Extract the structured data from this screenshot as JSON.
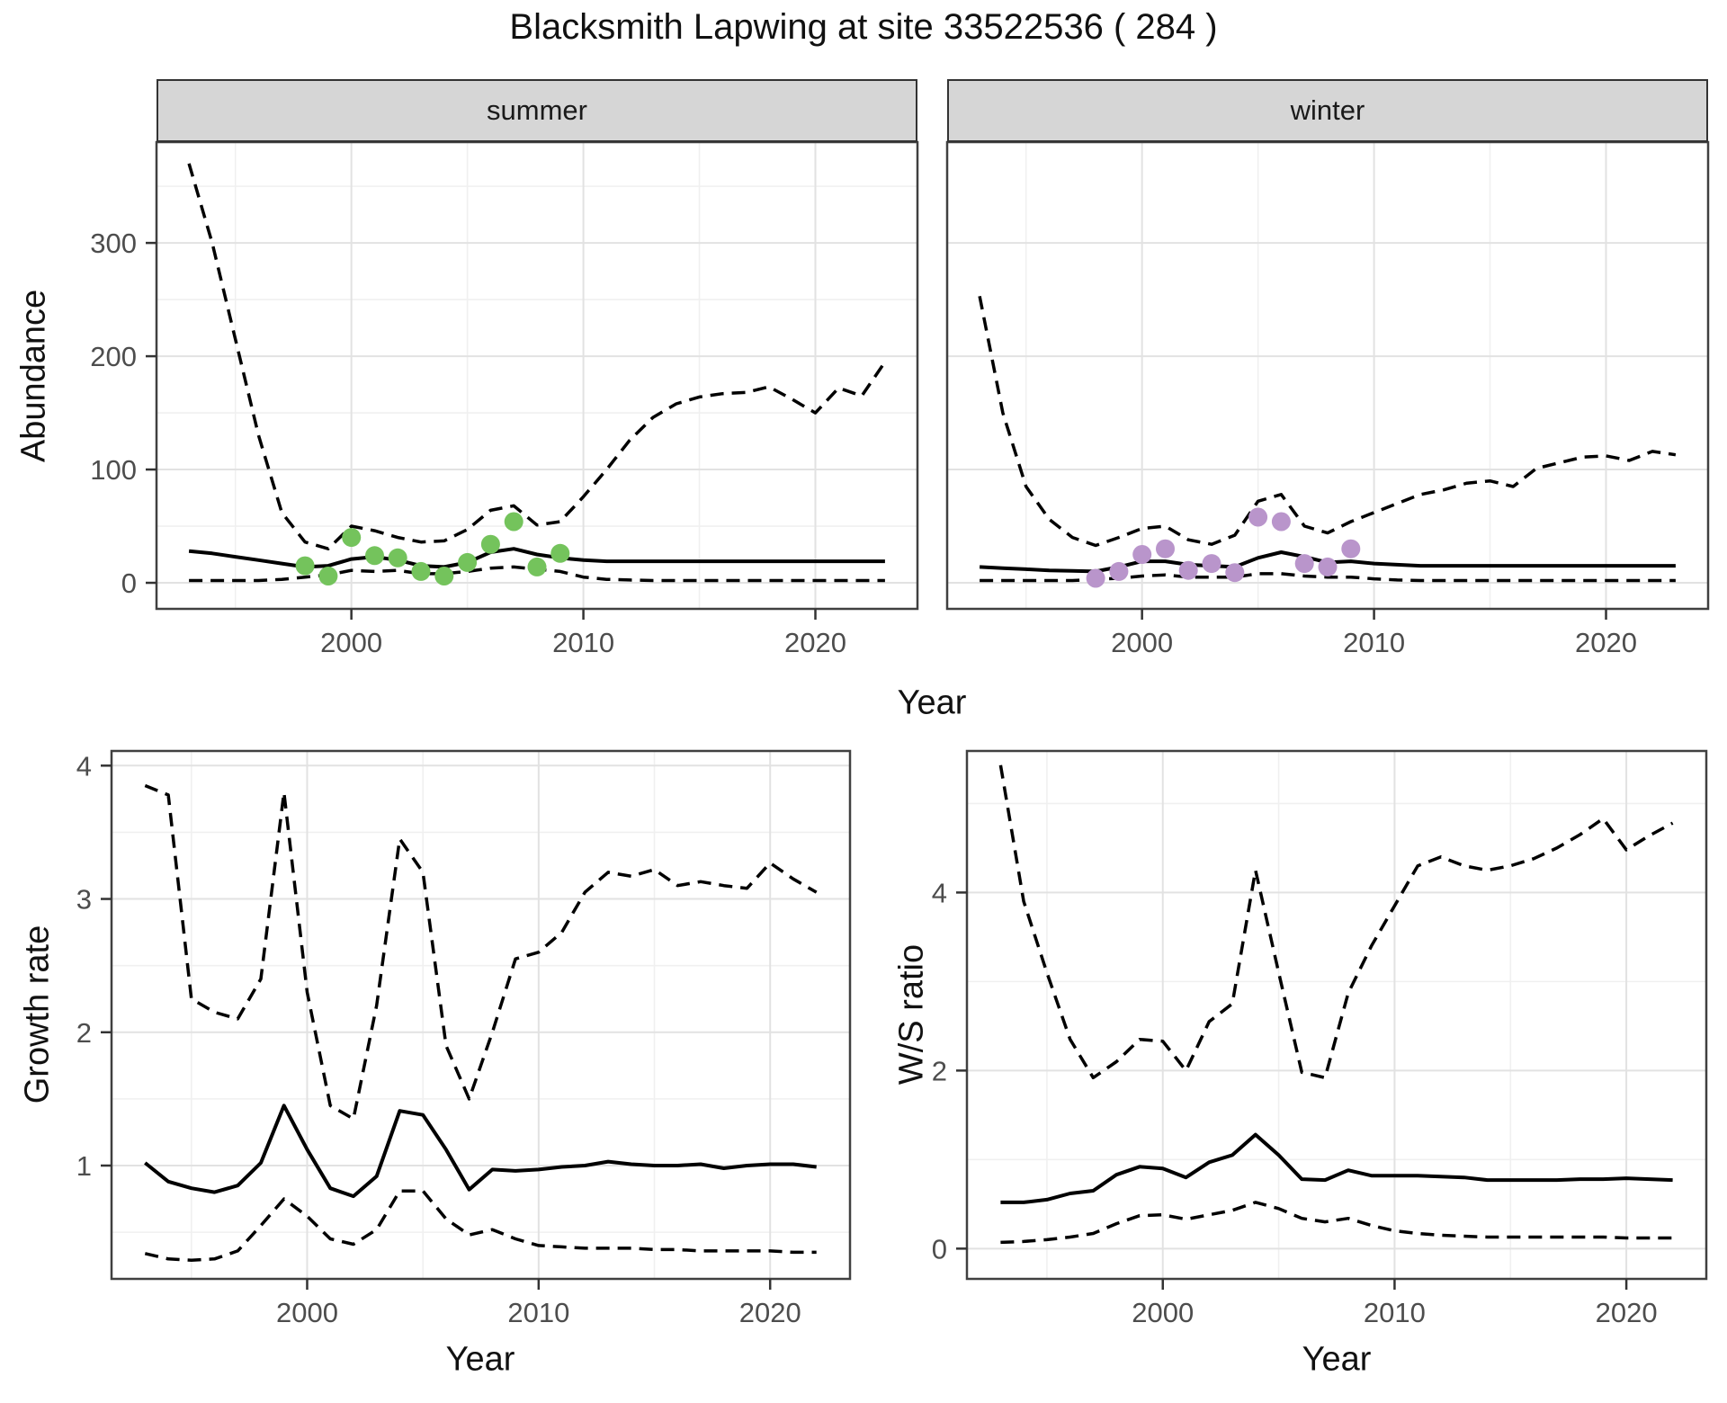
{
  "title": "Blacksmith Lapwing at site 33522536 ( 284 )",
  "axes": {
    "abundance": "Abundance",
    "year": "Year",
    "growth_rate": "Growth rate",
    "ws_ratio": "W/S ratio"
  },
  "facets": {
    "summer": "summer",
    "winter": "winter"
  },
  "colors": {
    "summer_points": "#74C35C",
    "winter_points": "#B995CB",
    "line": "#000000",
    "strip_fill": "#D6D6D6",
    "grid_major": "#E2E2E2",
    "grid_minor": "#F0F0F0",
    "tick_label": "#4D4D4D",
    "panel_border": "#404040"
  },
  "chart_data": {
    "type": "line",
    "title": "Blacksmith Lapwing at site 33522536 ( 284 )",
    "xlabel": "Year",
    "legend": "none",
    "grid": "on",
    "panels": [
      {
        "id": "abundance-summer",
        "facet": "summer",
        "ylabel": "Abundance",
        "xlabel": "Year",
        "xlim": [
          1991.6,
          2024.4
        ],
        "ylim": [
          -23,
          389
        ],
        "x_ticks": [
          2000,
          2010,
          2020
        ],
        "x_minor": [
          1995,
          2005,
          2015
        ],
        "y_ticks": [
          0,
          100,
          200,
          300
        ],
        "y_minor": [
          50,
          150,
          250,
          350
        ],
        "years": [
          1993,
          1994,
          1995,
          1996,
          1997,
          1998,
          1999,
          2000,
          2001,
          2002,
          2003,
          2004,
          2005,
          2006,
          2007,
          2008,
          2009,
          2010,
          2011,
          2012,
          2013,
          2014,
          2015,
          2016,
          2017,
          2018,
          2019,
          2020,
          2021,
          2022,
          2023
        ],
        "series": [
          {
            "name": "upper_95ci",
            "style": "dashed",
            "values": [
              370,
              300,
              215,
              130,
              62,
              36,
              30,
              50,
              46,
              40,
              36,
              37,
              47,
              64,
              68,
              51,
              54,
              76,
              100,
              126,
              146,
              158,
              164,
              167,
              168,
              173,
              162,
              150,
              172,
              165,
              195
            ]
          },
          {
            "name": "median",
            "style": "solid",
            "values": [
              28,
              26,
              23,
              20,
              17,
              14,
              15,
              21,
              23,
              20,
              15,
              14,
              18,
              27,
              30,
              25,
              22,
              20,
              19,
              19,
              19,
              19,
              19,
              19,
              19,
              19,
              19,
              19,
              19,
              19,
              19
            ]
          },
          {
            "name": "lower_95ci",
            "style": "dashed",
            "values": [
              2,
              2,
              2,
              2,
              3,
              5,
              7,
              11,
              10,
              11,
              8,
              8,
              10,
              13,
              14,
              12,
              10,
              5,
              3,
              2.5,
              2,
              2,
              2,
              2,
              2,
              2,
              2,
              2,
              2,
              2,
              2
            ]
          }
        ],
        "points": {
          "name": "observed-summer-counts",
          "color_key": "summer_points",
          "data": [
            [
              1998,
              15
            ],
            [
              1999,
              6
            ],
            [
              2000,
              40
            ],
            [
              2001,
              24
            ],
            [
              2002,
              22
            ],
            [
              2003,
              10
            ],
            [
              2004,
              6
            ],
            [
              2005,
              18
            ],
            [
              2006,
              34
            ],
            [
              2007,
              54
            ],
            [
              2008,
              14
            ],
            [
              2009,
              26
            ]
          ]
        }
      },
      {
        "id": "abundance-winter",
        "facet": "winter",
        "ylabel": "Abundance",
        "xlabel": "Year",
        "xlim": [
          1991.6,
          2024.4
        ],
        "ylim": [
          -23,
          389
        ],
        "x_ticks": [
          2000,
          2010,
          2020
        ],
        "x_minor": [
          1995,
          2005,
          2015
        ],
        "y_ticks": [],
        "y_minor": [],
        "years": [
          1993,
          1994,
          1995,
          1996,
          1997,
          1998,
          1999,
          2000,
          2001,
          2002,
          2003,
          2004,
          2005,
          2006,
          2007,
          2008,
          2009,
          2010,
          2011,
          2012,
          2013,
          2014,
          2015,
          2016,
          2017,
          2018,
          2019,
          2020,
          2021,
          2022,
          2023
        ],
        "series": [
          {
            "name": "upper_95ci",
            "style": "dashed",
            "values": [
              253,
              150,
              85,
              56,
              40,
              33,
              40,
              48,
              50,
              38,
              34,
              42,
              72,
              78,
              50,
              44,
              54,
              62,
              70,
              78,
              82,
              88,
              90,
              85,
              101,
              106,
              111,
              112,
              108,
              116,
              113
            ]
          },
          {
            "name": "median",
            "style": "solid",
            "values": [
              14,
              13,
              12,
              11,
              10.5,
              10,
              14,
              19,
              19,
              16,
              15,
              14,
              22,
              27,
              23,
              18,
              19,
              17,
              16,
              15,
              15,
              15,
              15,
              15,
              15,
              15,
              15,
              15,
              15,
              15,
              15
            ]
          },
          {
            "name": "lower_95ci",
            "style": "dashed",
            "values": [
              2,
              2,
              2,
              2,
              2,
              3,
              4,
              6,
              7,
              5,
              5,
              5,
              8,
              8,
              6,
              5,
              5,
              3.5,
              2.5,
              2,
              2,
              2,
              2,
              2,
              2,
              2,
              2,
              2,
              2,
              2,
              2
            ]
          }
        ],
        "points": {
          "name": "observed-winter-counts",
          "color_key": "winter_points",
          "data": [
            [
              1998,
              4
            ],
            [
              1999,
              10
            ],
            [
              2000,
              25
            ],
            [
              2001,
              30
            ],
            [
              2002,
              11
            ],
            [
              2003,
              17
            ],
            [
              2004,
              9
            ],
            [
              2005,
              58
            ],
            [
              2006,
              54
            ],
            [
              2007,
              17
            ],
            [
              2008,
              14
            ],
            [
              2009,
              30
            ]
          ]
        }
      },
      {
        "id": "growth-rate",
        "facet": null,
        "ylabel": "Growth rate",
        "xlabel": "Year",
        "xlim": [
          1991.55,
          2023.45
        ],
        "ylim": [
          0.15,
          4.11
        ],
        "x_ticks": [
          2000,
          2010,
          2020
        ],
        "x_minor": [
          1995,
          2005,
          2015
        ],
        "y_ticks": [
          1,
          2,
          3,
          4
        ],
        "y_minor": [
          0.5,
          1.5,
          2.5,
          3.5
        ],
        "years": [
          1993,
          1994,
          1995,
          1996,
          1997,
          1998,
          1999,
          2000,
          2001,
          2002,
          2003,
          2004,
          2005,
          2006,
          2007,
          2008,
          2009,
          2010,
          2011,
          2012,
          2013,
          2014,
          2015,
          2016,
          2017,
          2018,
          2019,
          2020,
          2021,
          2022
        ],
        "series": [
          {
            "name": "upper_95ci",
            "style": "dashed",
            "values": [
              3.85,
              3.78,
              2.25,
              2.15,
              2.1,
              2.4,
              3.8,
              2.3,
              1.45,
              1.35,
              2.2,
              3.45,
              3.2,
              1.9,
              1.5,
              2.0,
              2.55,
              2.6,
              2.75,
              3.05,
              3.2,
              3.17,
              3.22,
              3.1,
              3.13,
              3.1,
              3.08,
              3.27,
              3.15,
              3.05
            ]
          },
          {
            "name": "median",
            "style": "solid",
            "values": [
              1.02,
              0.88,
              0.83,
              0.8,
              0.85,
              1.02,
              1.45,
              1.12,
              0.83,
              0.77,
              0.92,
              1.41,
              1.38,
              1.12,
              0.82,
              0.97,
              0.96,
              0.97,
              0.99,
              1.0,
              1.03,
              1.01,
              1.0,
              1.0,
              1.01,
              0.98,
              1.0,
              1.01,
              1.01,
              0.99
            ]
          },
          {
            "name": "lower_95ci",
            "style": "dashed",
            "values": [
              0.34,
              0.3,
              0.29,
              0.3,
              0.36,
              0.55,
              0.75,
              0.62,
              0.45,
              0.41,
              0.52,
              0.81,
              0.81,
              0.6,
              0.48,
              0.52,
              0.45,
              0.4,
              0.39,
              0.38,
              0.38,
              0.38,
              0.37,
              0.37,
              0.36,
              0.36,
              0.36,
              0.36,
              0.35,
              0.35
            ]
          }
        ],
        "points": null
      },
      {
        "id": "ws-ratio",
        "facet": null,
        "ylabel": "W/S ratio",
        "xlabel": "Year",
        "xlim": [
          1991.55,
          2023.45
        ],
        "ylim": [
          -0.34,
          5.59
        ],
        "x_ticks": [
          2000,
          2010,
          2020
        ],
        "x_minor": [
          1995,
          2005,
          2015
        ],
        "y_ticks": [
          0,
          2,
          4
        ],
        "y_minor": [
          1,
          3,
          5
        ],
        "years": [
          1993,
          1994,
          1995,
          1996,
          1997,
          1998,
          1999,
          2000,
          2001,
          2002,
          2003,
          2004,
          2005,
          2006,
          2007,
          2008,
          2009,
          2010,
          2011,
          2012,
          2013,
          2014,
          2015,
          2016,
          2017,
          2018,
          2019,
          2020,
          2021,
          2022
        ],
        "series": [
          {
            "name": "upper_95ci",
            "style": "dashed",
            "values": [
              5.43,
              3.9,
              3.1,
              2.35,
              1.92,
              2.1,
              2.35,
              2.33,
              2.0,
              2.55,
              2.75,
              4.25,
              3.1,
              1.98,
              1.92,
              2.87,
              3.4,
              3.85,
              4.3,
              4.4,
              4.3,
              4.25,
              4.3,
              4.38,
              4.5,
              4.65,
              4.83,
              4.48,
              4.64,
              4.78
            ]
          },
          {
            "name": "median",
            "style": "solid",
            "values": [
              0.52,
              0.52,
              0.55,
              0.62,
              0.65,
              0.83,
              0.92,
              0.9,
              0.8,
              0.97,
              1.05,
              1.28,
              1.05,
              0.78,
              0.77,
              0.88,
              0.82,
              0.82,
              0.82,
              0.81,
              0.8,
              0.77,
              0.77,
              0.77,
              0.77,
              0.78,
              0.78,
              0.79,
              0.78,
              0.77
            ]
          },
          {
            "name": "lower_95ci",
            "style": "dashed",
            "values": [
              0.07,
              0.08,
              0.1,
              0.13,
              0.17,
              0.28,
              0.37,
              0.38,
              0.33,
              0.38,
              0.43,
              0.52,
              0.45,
              0.34,
              0.3,
              0.34,
              0.26,
              0.2,
              0.17,
              0.15,
              0.14,
              0.13,
              0.13,
              0.13,
              0.13,
              0.13,
              0.13,
              0.12,
              0.12,
              0.12
            ]
          }
        ],
        "points": null
      }
    ]
  }
}
